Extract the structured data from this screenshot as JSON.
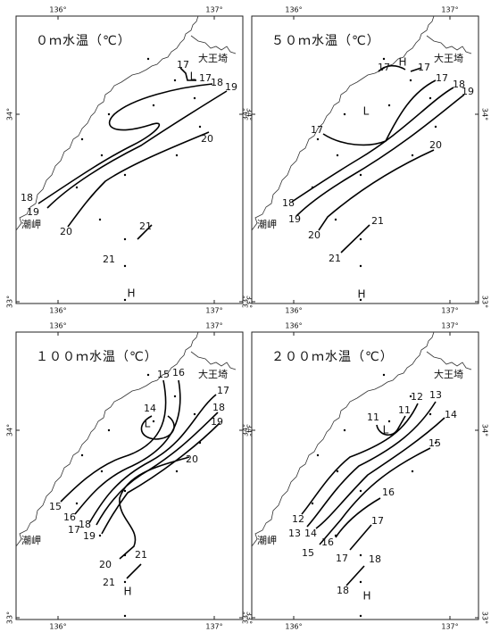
{
  "axis": {
    "lon": [
      "136°",
      "137°"
    ],
    "lat": [
      "34°",
      "33°"
    ]
  },
  "places": [
    "大王埼",
    "潮岬"
  ],
  "panels": [
    {
      "title": "０ｍ水温（℃）",
      "contour_labels": [
        "17",
        "17",
        "18",
        "19",
        "20",
        "18",
        "19",
        "20",
        "21",
        "21"
      ],
      "markers": [
        "L",
        "H"
      ]
    },
    {
      "title": "５０ｍ水温（℃）",
      "contour_labels": [
        "17",
        "17",
        "17",
        "18",
        "19",
        "17",
        "20",
        "18",
        "19",
        "20",
        "21",
        "21"
      ],
      "markers": [
        "H",
        "L",
        "H"
      ]
    },
    {
      "title": "１００ｍ水温（℃）",
      "contour_labels": [
        "15",
        "16",
        "17",
        "14",
        "18",
        "19",
        "20",
        "15",
        "16",
        "18",
        "17",
        "19",
        "21",
        "20",
        "21"
      ],
      "markers": [
        "L",
        "H"
      ]
    },
    {
      "title": "２００ｍ水温（℃）",
      "contour_labels": [
        "13",
        "12",
        "14",
        "11",
        "11",
        "15",
        "16",
        "17",
        "18",
        "18",
        "12",
        "13",
        "14",
        "15",
        "16",
        "17"
      ],
      "markers": [
        "L",
        "H"
      ]
    }
  ]
}
